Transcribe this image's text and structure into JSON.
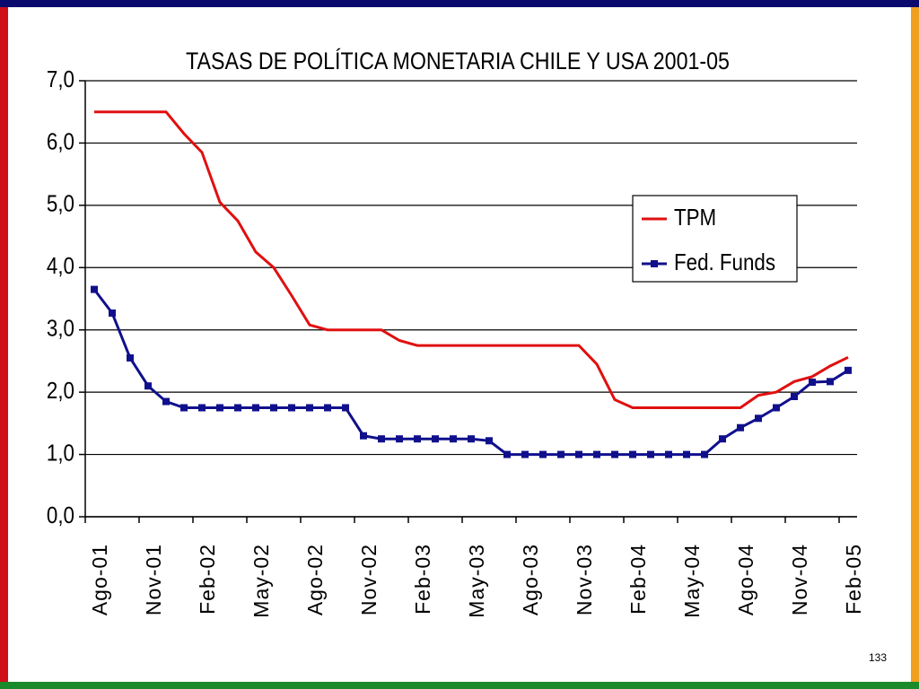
{
  "page_number": "133",
  "chart_data": {
    "type": "line",
    "title": "TASAS DE POLÍTICA MONETARIA CHILE Y USA 2001-05",
    "categories": [
      "Ago-01",
      null,
      null,
      "Nov-01",
      null,
      null,
      "Feb-02",
      null,
      null,
      "May-02",
      null,
      null,
      "Ago-02",
      null,
      null,
      "Nov-02",
      null,
      null,
      "Feb-03",
      null,
      null,
      "May-03",
      null,
      null,
      "Ago-03",
      null,
      null,
      "Nov-03",
      null,
      null,
      "Feb-04",
      null,
      null,
      "May-04",
      null,
      null,
      "Ago-04",
      null,
      null,
      "Nov-04",
      null,
      null,
      "Feb-05"
    ],
    "series": [
      {
        "name": "TPM",
        "color": "#e01010",
        "marker": false,
        "values": [
          6.5,
          6.5,
          6.5,
          6.5,
          6.5,
          6.15,
          5.85,
          5.05,
          4.75,
          4.25,
          4.0,
          3.55,
          3.08,
          3.0,
          3.0,
          3.0,
          3.0,
          2.83,
          2.75,
          2.75,
          2.75,
          2.75,
          2.75,
          2.75,
          2.75,
          2.75,
          2.75,
          2.75,
          2.45,
          1.88,
          1.75,
          1.75,
          1.75,
          1.75,
          1.75,
          1.75,
          1.75,
          1.95,
          2.0,
          2.17,
          2.25,
          2.42,
          2.56
        ]
      },
      {
        "name": "Fed. Funds",
        "color": "#10108c",
        "marker": true,
        "values": [
          3.65,
          3.27,
          2.55,
          2.1,
          1.85,
          1.75,
          1.75,
          1.75,
          1.75,
          1.75,
          1.75,
          1.75,
          1.75,
          1.75,
          1.75,
          1.3,
          1.25,
          1.25,
          1.25,
          1.25,
          1.25,
          1.25,
          1.22,
          1.0,
          1.0,
          1.0,
          1.0,
          1.0,
          1.0,
          1.0,
          1.0,
          1.0,
          1.0,
          1.0,
          1.0,
          1.25,
          1.43,
          1.58,
          1.75,
          1.93,
          2.16,
          2.17,
          2.35
        ]
      }
    ],
    "ylim": [
      0,
      7
    ],
    "yticks": [
      {
        "value": 0,
        "label": "0,0"
      },
      {
        "value": 1,
        "label": "1,0"
      },
      {
        "value": 2,
        "label": "2,0"
      },
      {
        "value": 3,
        "label": "3,0"
      },
      {
        "value": 4,
        "label": "4,0"
      },
      {
        "value": 5,
        "label": "5,0"
      },
      {
        "value": 6,
        "label": "6,0"
      },
      {
        "value": 7,
        "label": "7,0"
      }
    ],
    "grid": true,
    "legend": "right"
  }
}
